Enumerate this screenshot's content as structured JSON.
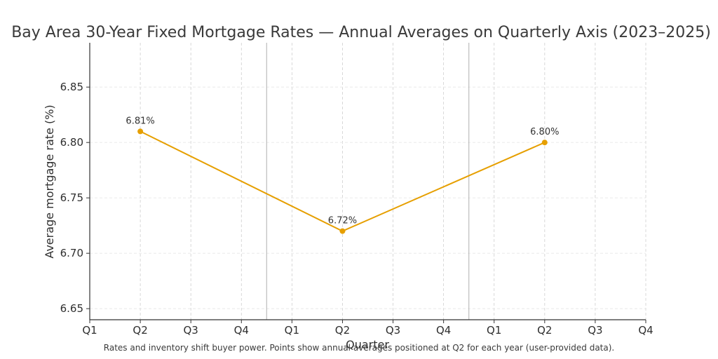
{
  "chart_data": {
    "type": "line",
    "title": "Bay Area 30-Year Fixed Mortgage Rates — Annual Averages on Quarterly Axis (2023–2025)",
    "xlabel": "Quarter",
    "ylabel": "Average mortgage rate (%)",
    "categories": [
      "Q1",
      "Q2",
      "Q3",
      "Q4",
      "Q1",
      "Q2",
      "Q3",
      "Q4",
      "Q1",
      "Q2",
      "Q3",
      "Q4"
    ],
    "year_separators_after_category_index": [
      3,
      7
    ],
    "ylim": [
      6.64,
      6.89
    ],
    "yticks": [
      6.65,
      6.7,
      6.75,
      6.8,
      6.85
    ],
    "ytick_labels": [
      "6.65",
      "6.70",
      "6.75",
      "6.80",
      "6.85"
    ],
    "grid": true,
    "series": [
      {
        "color": "#e69f00",
        "points": [
          {
            "x_index": 1,
            "y": 6.81,
            "label": "6.81%"
          },
          {
            "x_index": 5,
            "y": 6.72,
            "label": "6.72%"
          },
          {
            "x_index": 9,
            "y": 6.8,
            "label": "6.80%"
          }
        ]
      }
    ],
    "caption": "Rates and inventory shift buyer power. Points show annual averages positioned at Q2 for each year (user-provided data)."
  }
}
